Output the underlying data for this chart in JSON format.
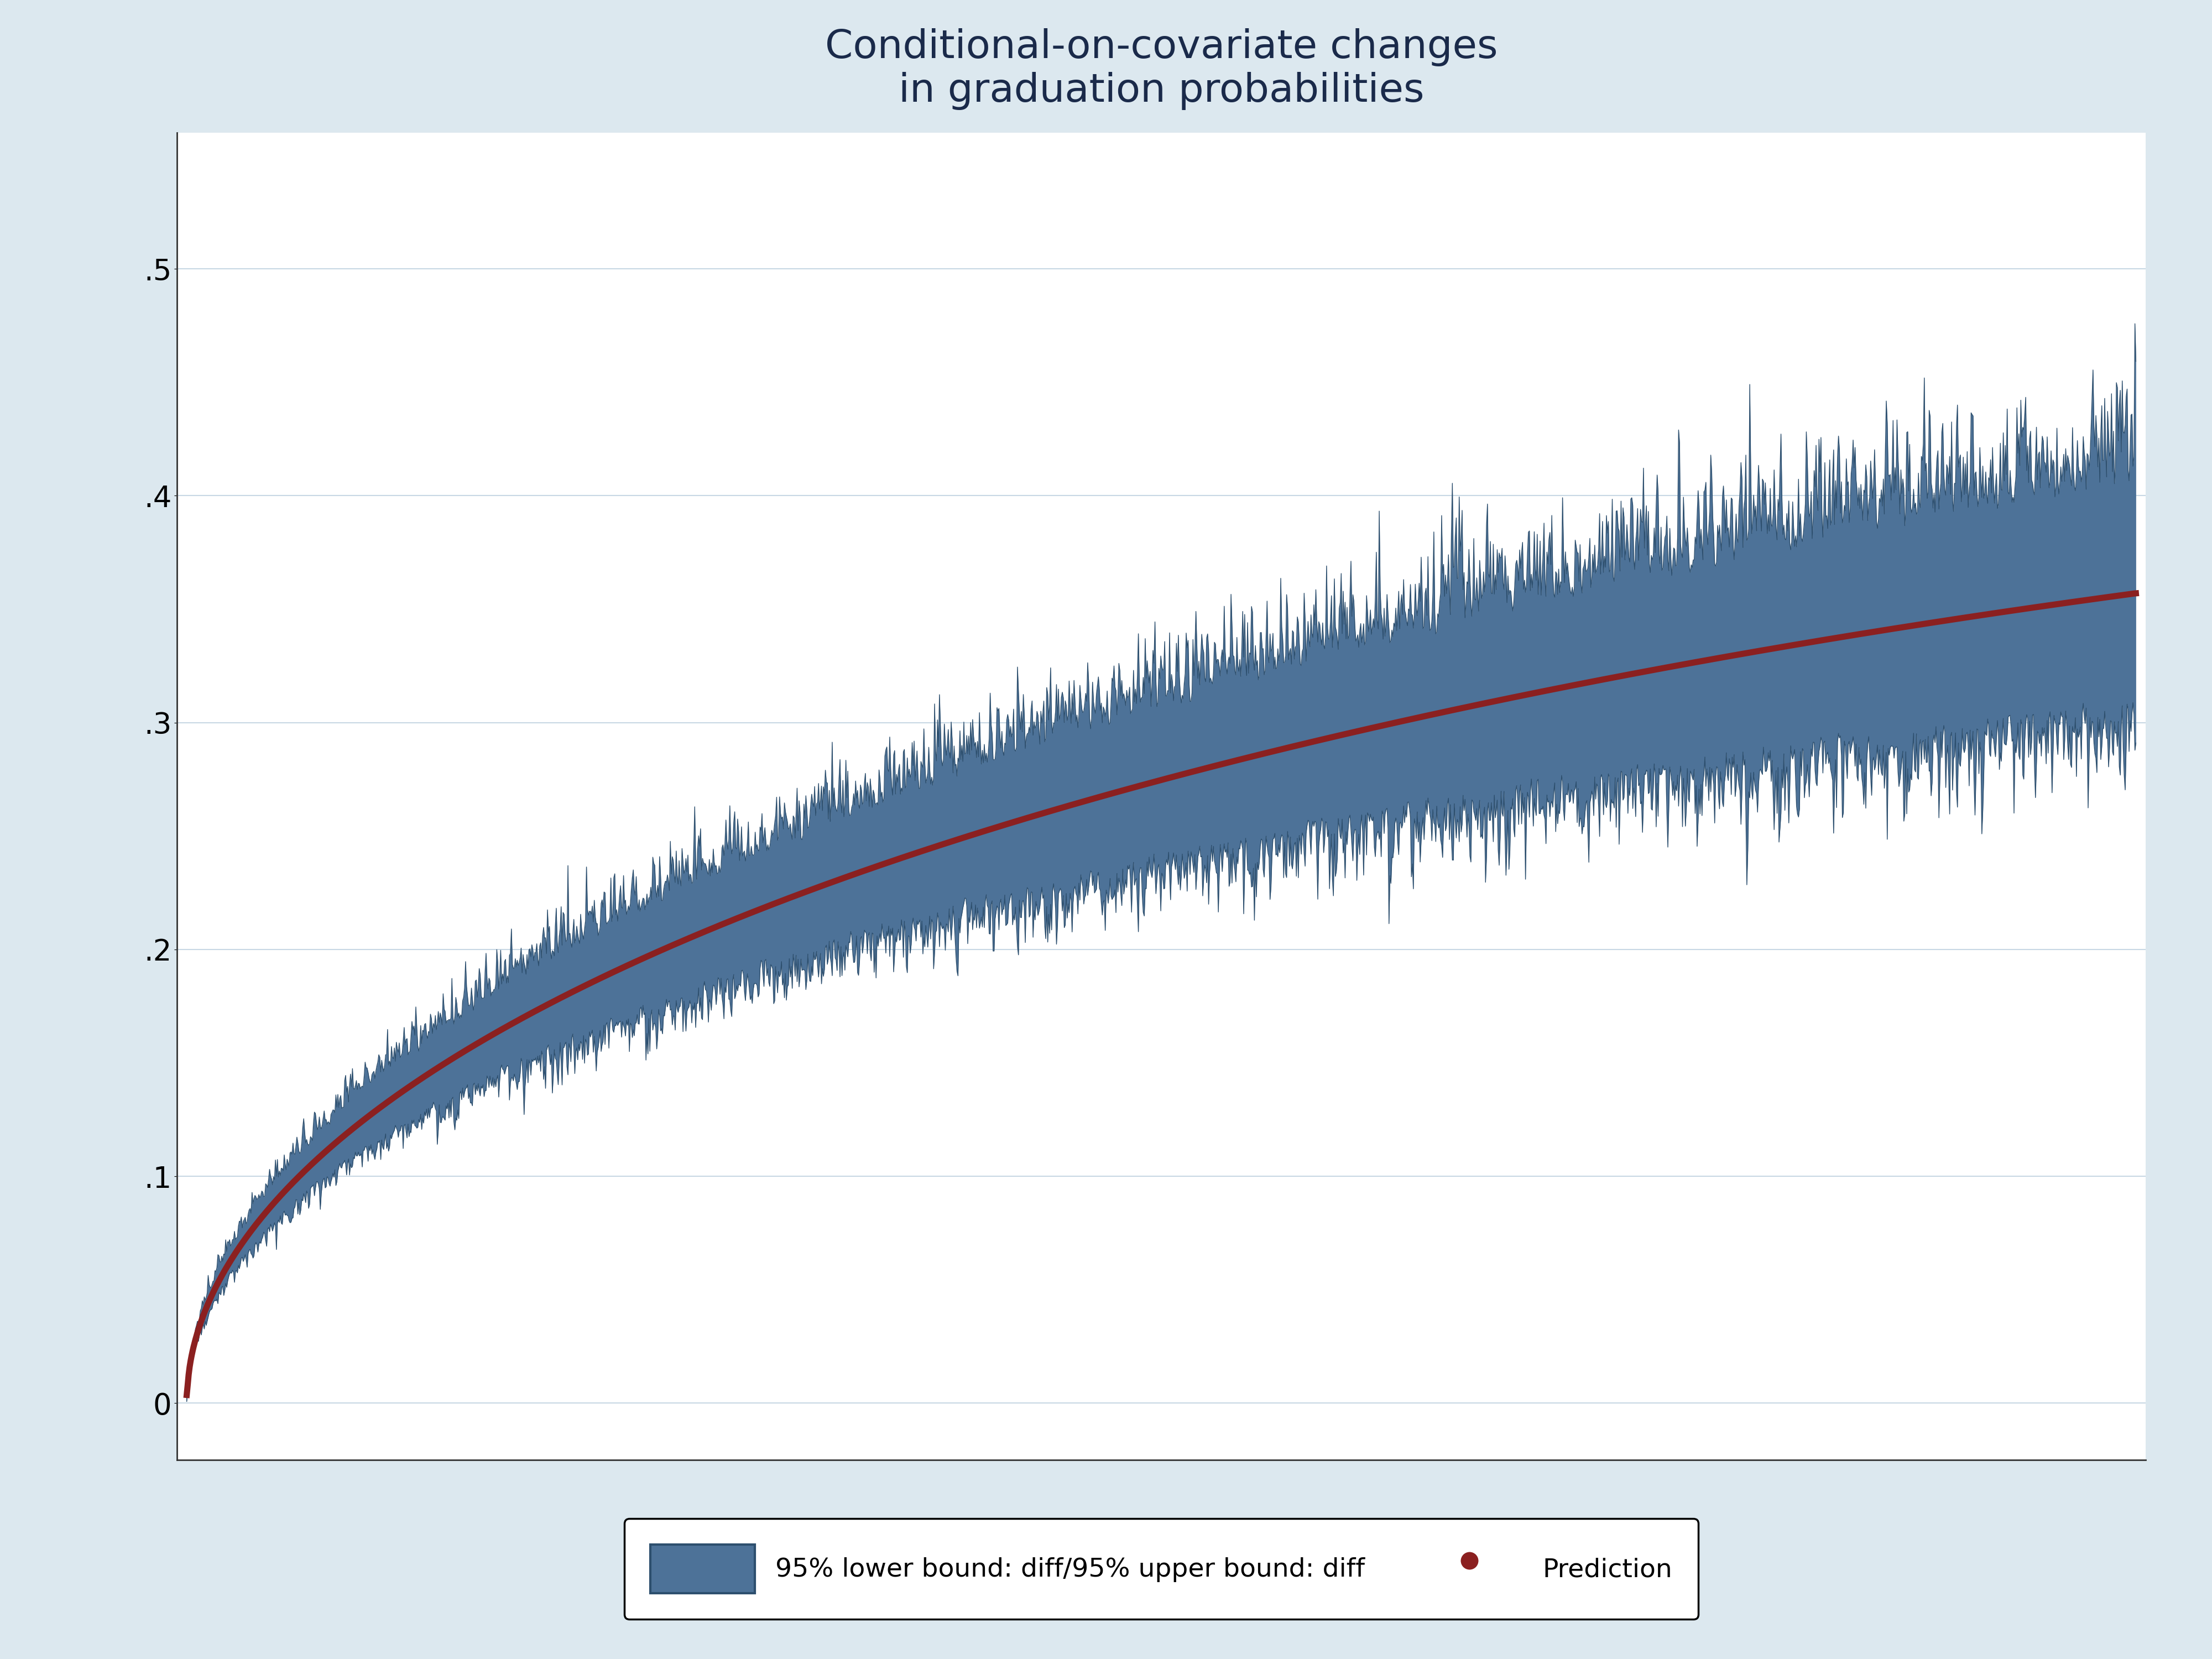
{
  "title": "Conditional-on-covariate changes\nin graduation probabilities",
  "title_color": "#1a2a4a",
  "title_fontsize": 52,
  "background_color": "#dce8ef",
  "plot_bg_color": "#ffffff",
  "yticks": [
    0,
    0.1,
    0.2,
    0.3,
    0.4,
    0.5
  ],
  "ytick_labels": [
    "0",
    ".1",
    ".2",
    ".3",
    ".4",
    ".5"
  ],
  "ylim": [
    -0.025,
    0.56
  ],
  "n_points": 2000,
  "band_color": "#4d7298",
  "band_alpha": 1.0,
  "band_edge_color": "#2d4f6e",
  "line_color": "#8b2020",
  "line_width": 8,
  "legend_band_color": "#4d7298",
  "legend_band_edge": "#2d4f6e",
  "legend_dot_color": "#8b2020",
  "legend_label_band": "95% lower bound: diff/95% upper bound: diff",
  "legend_label_dot": "Prediction",
  "legend_fontsize": 34,
  "tick_fontsize": 38,
  "grid_color": "#c8d8e4",
  "grid_alpha": 1.0
}
